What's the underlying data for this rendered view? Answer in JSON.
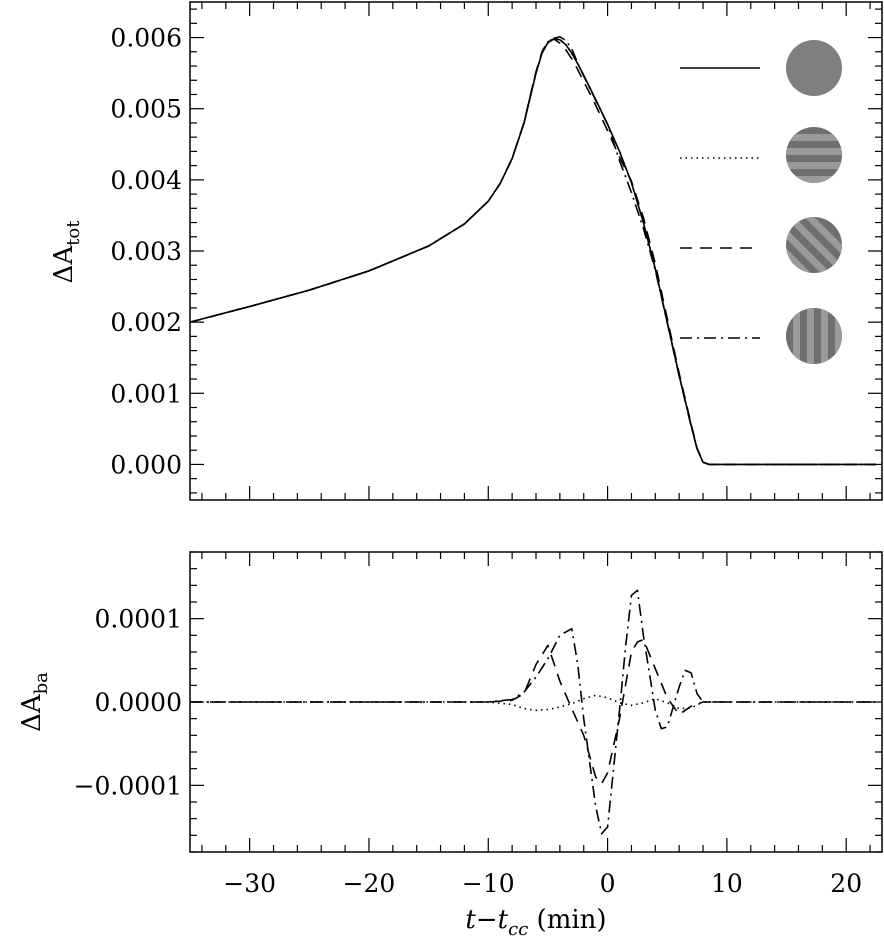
{
  "chart_data": [
    {
      "type": "line",
      "panel": "top",
      "ylabel": {
        "main": "ΔA",
        "sub": "tot"
      },
      "xlim": [
        -35,
        23
      ],
      "ylim": [
        -0.0005,
        0.0065
      ],
      "yticks": [
        0.0,
        0.001,
        0.002,
        0.003,
        0.004,
        0.005,
        0.006
      ],
      "ytick_labels": [
        "0.000",
        "0.001",
        "0.002",
        "0.003",
        "0.004",
        "0.005",
        "0.006"
      ],
      "legend_position": "top-right",
      "legend_entries": [
        {
          "line_style": "solid",
          "pattern": "uniform-disk"
        },
        {
          "line_style": "dotted",
          "pattern": "horizontal-bands-disk"
        },
        {
          "line_style": "dashed",
          "pattern": "diagonal-bands-disk"
        },
        {
          "line_style": "dash-dot",
          "pattern": "vertical-bands-disk"
        }
      ],
      "series": [
        {
          "line_style": "solid",
          "x": [
            -35,
            -30,
            -25,
            -20,
            -15,
            -12,
            -10,
            -9,
            -8,
            -7,
            -6.5,
            -6,
            -5.5,
            -5,
            -4.5,
            -4,
            -3.5,
            -3,
            -2.5,
            -2,
            -1.5,
            -1,
            0,
            1,
            2,
            3,
            4,
            5,
            6,
            7,
            7.5,
            8,
            8.5,
            10,
            15,
            22.5
          ],
          "y": [
            0.002,
            0.00222,
            0.00245,
            0.00272,
            0.00307,
            0.00338,
            0.0037,
            0.00395,
            0.0043,
            0.0048,
            0.00515,
            0.0055,
            0.00578,
            0.00593,
            0.00598,
            0.00597,
            0.0059,
            0.00578,
            0.00563,
            0.00547,
            0.0053,
            0.00513,
            0.00478,
            0.0044,
            0.00396,
            0.0034,
            0.00275,
            0.002,
            0.00125,
            0.00055,
            0.00022,
            3e-05,
            0.0,
            0.0,
            0.0,
            0.0
          ]
        },
        {
          "line_style": "dotted",
          "x": [
            -35,
            -30,
            -25,
            -20,
            -15,
            -12,
            -10,
            -9,
            -8,
            -7,
            -6.5,
            -6,
            -5.5,
            -5,
            -4.5,
            -4,
            -3.5,
            -3,
            -2.5,
            -2,
            -1.5,
            -1,
            0,
            1,
            2,
            3,
            4,
            5,
            6,
            7,
            7.5,
            8,
            8.5,
            10,
            15,
            22.5
          ],
          "y": [
            0.002,
            0.00222,
            0.00245,
            0.00272,
            0.00307,
            0.00338,
            0.0037,
            0.00395,
            0.0043,
            0.0048,
            0.00515,
            0.0055,
            0.00578,
            0.00593,
            0.00598,
            0.00597,
            0.0059,
            0.00578,
            0.00563,
            0.00547,
            0.0053,
            0.00513,
            0.00478,
            0.0044,
            0.00396,
            0.0034,
            0.00275,
            0.002,
            0.00125,
            0.00055,
            0.00022,
            3e-05,
            0.0,
            0.0,
            0.0,
            0.0
          ]
        },
        {
          "line_style": "dashed",
          "x": [
            -35,
            -30,
            -25,
            -20,
            -15,
            -12,
            -10,
            -9,
            -8,
            -7,
            -6.5,
            -6,
            -5.5,
            -5,
            -4.5,
            -4,
            -3.5,
            -3,
            -2.5,
            -2,
            -1.5,
            -1,
            0,
            1,
            2,
            3,
            4,
            5,
            6,
            7,
            7.5,
            8,
            8.5,
            10,
            15,
            22.5
          ],
          "y": [
            0.002,
            0.00222,
            0.00245,
            0.00272,
            0.00307,
            0.00338,
            0.0037,
            0.00395,
            0.0043,
            0.00481,
            0.00517,
            0.00552,
            0.0058,
            0.00595,
            0.00598,
            0.00592,
            0.00583,
            0.0057,
            0.00555,
            0.00538,
            0.00522,
            0.00505,
            0.00469,
            0.00432,
            0.00398,
            0.00347,
            0.00282,
            0.00205,
            0.00128,
            0.00057,
            0.00023,
            3e-05,
            0.0,
            0.0,
            0.0,
            0.0
          ]
        },
        {
          "line_style": "dash-dot",
          "x": [
            -35,
            -30,
            -25,
            -20,
            -15,
            -12,
            -10,
            -9,
            -8,
            -7,
            -6.5,
            -6,
            -5.5,
            -5,
            -4.5,
            -4,
            -3.5,
            -3,
            -2.5,
            -2,
            -1.5,
            -1,
            0,
            1,
            2,
            3,
            4,
            5,
            6,
            7,
            7.5,
            8,
            8.5,
            10,
            15,
            22.5
          ],
          "y": [
            0.002,
            0.00222,
            0.00245,
            0.00272,
            0.00307,
            0.00338,
            0.0037,
            0.00395,
            0.0043,
            0.0048,
            0.00516,
            0.00551,
            0.00579,
            0.00594,
            0.00599,
            0.00601,
            0.00596,
            0.00584,
            0.00564,
            0.00546,
            0.00529,
            0.00512,
            0.00478,
            0.00427,
            0.00382,
            0.00332,
            0.00273,
            0.00199,
            0.00124,
            0.00054,
            0.00022,
            3e-05,
            0.0,
            0.0,
            0.0,
            0.0
          ]
        }
      ]
    },
    {
      "type": "line",
      "panel": "bottom",
      "ylabel": {
        "main": "ΔA",
        "sub": "ba"
      },
      "xlabel": {
        "pre": "t−t",
        "sub": "cc",
        "post": " (min)"
      },
      "xlim": [
        -35,
        23
      ],
      "ylim": [
        -0.00018,
        0.00018
      ],
      "xticks": [
        -30,
        -20,
        -10,
        0,
        10,
        20
      ],
      "xtick_labels": [
        "−30",
        "−20",
        "−10",
        "0",
        "10",
        "20"
      ],
      "yticks": [
        -0.0001,
        0.0,
        0.0001
      ],
      "ytick_labels": [
        "−0.0001",
        "0.0000",
        "0.0001"
      ],
      "series": [
        {
          "line_style": "dotted",
          "x": [
            -35,
            -10,
            -8,
            -7,
            -6,
            -5,
            -4,
            -3,
            -2,
            -1,
            0,
            1,
            2,
            3,
            4,
            5,
            6,
            7,
            8,
            10,
            22.5
          ],
          "y": [
            0,
            0,
            -3e-06,
            -8e-06,
            -1e-05,
            -9e-06,
            -6e-06,
            -2e-06,
            4e-06,
            8e-06,
            5e-06,
            -1e-06,
            -4e-06,
            -1e-06,
            4e-06,
            -1e-06,
            -8e-06,
            -7e-06,
            0.0,
            0,
            0
          ]
        },
        {
          "line_style": "dashed",
          "x": [
            -35,
            -10,
            -8,
            -7,
            -6,
            -5,
            -4,
            -3,
            -2,
            -1,
            -0.5,
            0,
            1,
            2,
            2.5,
            3,
            4,
            5,
            6,
            7,
            8,
            10,
            22.5
          ],
          "y": [
            0,
            0,
            2e-06,
            1e-05,
            4.5e-05,
            6.8e-05,
            2.5e-05,
            -8e-06,
            -4e-05,
            -9e-05,
            -9.8e-05,
            -8.5e-05,
            -2e-05,
            6e-05,
            7.2e-05,
            7.5e-05,
            4e-05,
            5e-06,
            -1.5e-05,
            -5e-06,
            0.0,
            0,
            0
          ]
        },
        {
          "line_style": "dash-dot",
          "x": [
            -35,
            -10,
            -8,
            -7,
            -6,
            -5,
            -4,
            -3,
            -2.5,
            -2,
            -1,
            -0.5,
            0,
            1,
            1.5,
            2,
            2.5,
            3,
            4,
            4.5,
            5,
            6,
            6.5,
            7,
            7.5,
            8,
            10,
            22.5
          ],
          "y": [
            0,
            0,
            3e-06,
            1.2e-05,
            3e-05,
            5.2e-05,
            8e-05,
            8.8e-05,
            4.5e-05,
            -2e-05,
            -0.000125,
            -0.000158,
            -0.00015,
            -1e-05,
            6.5e-05,
            0.000128,
            0.000134,
            8e-05,
            -1e-05,
            -3.2e-05,
            -3e-05,
            1.8e-05,
            3.8e-05,
            3.5e-05,
            1e-05,
            0.0,
            0,
            0
          ]
        }
      ]
    }
  ]
}
